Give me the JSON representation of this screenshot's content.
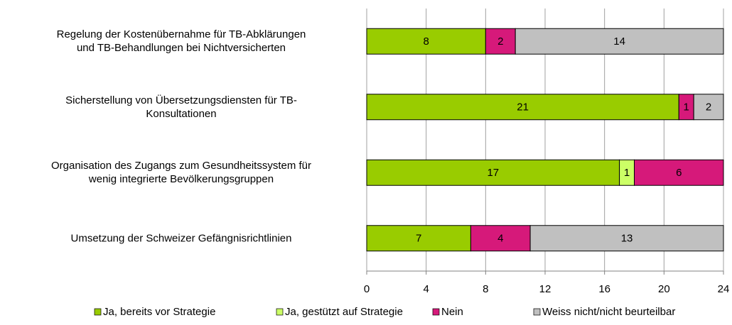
{
  "chart_data": {
    "type": "stacked_bar_horizontal",
    "categories": [
      "Regelung der Kostenübernahme für TB-Abklärungen\nund TB-Behandlungen bei Nichtversicherten",
      "Sicherstellung von Übersetzungsdiensten für TB-\nKonsultationen",
      "Organisation des Zugangs zum Gesundheitssystem für\nwenig integrierte Bevölkerungsgruppen",
      "Umsetzung der Schweizer Gefängnisrichtlinien"
    ],
    "series": [
      {
        "name": "Ja, bereits vor Strategie",
        "color": "#99cc00",
        "values": [
          8,
          21,
          17,
          7
        ]
      },
      {
        "name": "Ja, gestützt auf Strategie",
        "color": "#ccff66",
        "values": [
          0,
          0,
          1,
          0
        ]
      },
      {
        "name": "Nein",
        "color": "#d6197a",
        "values": [
          2,
          1,
          6,
          4
        ]
      },
      {
        "name": "Weiss nicht/nicht beurteilbar",
        "color": "#c0c0c0",
        "values": [
          14,
          2,
          0,
          13
        ]
      }
    ],
    "xlim": [
      0,
      24
    ],
    "xticks": [
      0,
      4,
      8,
      12,
      16,
      20,
      24
    ],
    "grid": true,
    "legend": "bottom"
  }
}
